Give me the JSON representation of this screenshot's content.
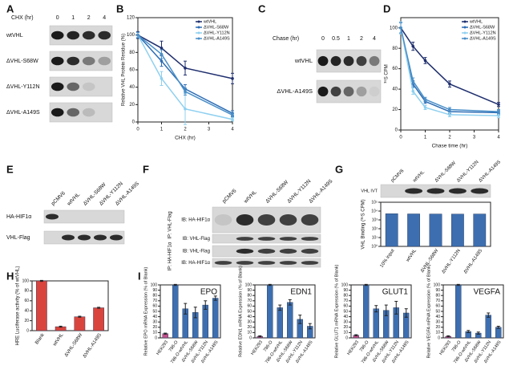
{
  "panel_labels": [
    "A",
    "B",
    "C",
    "D",
    "E",
    "F",
    "G",
    "H",
    "I"
  ],
  "blots": {
    "A": {
      "axis_label": "CHX (hr)",
      "lanes": [
        "0",
        "1",
        "2",
        "4"
      ],
      "rows": [
        "wtVHL",
        "ΔVHL-S68W",
        "ΔVHL-Y112N",
        "ΔVHL-A149S"
      ]
    },
    "C": {
      "axis_label": "Chase (hr)",
      "lanes": [
        "0",
        "0.5",
        "1",
        "2",
        "4"
      ],
      "rows": [
        "wtVHL",
        "ΔVHL-A149S"
      ]
    },
    "E": {
      "lanes": [
        "pCMV6",
        "wtVHL",
        "ΔVHL-S68W",
        "ΔVHL-Y112N",
        "ΔVHL-A149S"
      ],
      "rows": [
        "HA-HIF1α",
        "VHL-Flag"
      ]
    },
    "F": {
      "lanes": [
        "pCMV6",
        "wtVHL",
        "ΔVHL-S68W",
        "ΔVHL-Y112N",
        "ΔVHL-A149S"
      ],
      "groups": [
        {
          "name": "IP: VHL-Flag",
          "rows": [
            "IB: HA-HIF1α",
            "IB: VHL-Flag"
          ]
        },
        {
          "name": "IP: HA-HIF1α",
          "rows": [
            "IB: VHL-Flag",
            "IB: HA-HIF1α"
          ]
        }
      ]
    },
    "G": {
      "lanes": [
        "pCMV6",
        "wtVHL",
        "ΔVHL-S68W",
        "ΔVHL-Y112N",
        "ΔVHL-A149S"
      ],
      "row": "VHL IVT"
    }
  },
  "chart_data": [
    {
      "type": "line",
      "xlabel": "CHX (hr)",
      "ylabel": "Relative VHL Protein Residue (%)",
      "x": [
        0,
        1,
        2,
        4
      ],
      "xlim": [
        0,
        4
      ],
      "xticks": [
        0,
        1,
        2,
        3,
        4
      ],
      "ylim": [
        0,
        120
      ],
      "yticks": [
        0,
        20,
        40,
        60,
        80,
        100,
        120
      ],
      "legend": "upper right",
      "series": [
        {
          "name": "wtVHL",
          "color": "#1f2f6e",
          "values": [
            100,
            85,
            62,
            50
          ],
          "errors": [
            4,
            8,
            8,
            6
          ]
        },
        {
          "name": "ΔVHL-S68W",
          "color": "#2e6db4",
          "values": [
            100,
            70,
            38,
            10
          ],
          "errors": [
            3,
            6,
            5,
            3
          ]
        },
        {
          "name": "ΔVHL-Y112N",
          "color": "#8fd0f0",
          "values": [
            100,
            50,
            15,
            3
          ],
          "errors": [
            3,
            8,
            18,
            2
          ]
        },
        {
          "name": "ΔVHL-A149S",
          "color": "#4a8fc8",
          "values": [
            100,
            78,
            35,
            8
          ],
          "errors": [
            3,
            5,
            4,
            2
          ]
        }
      ]
    },
    {
      "type": "line",
      "xlabel": "Chase time (hr)",
      "ylabel": "³⁵S CPM",
      "x": [
        0,
        0.5,
        1,
        2,
        4
      ],
      "xlim": [
        0,
        4
      ],
      "xticks": [
        0,
        1,
        2,
        3,
        4
      ],
      "ylim": [
        0,
        110
      ],
      "yticks": [
        0,
        20,
        40,
        60,
        80,
        100
      ],
      "legend": "upper right",
      "series": [
        {
          "name": "wtVHL",
          "color": "#1f2f6e",
          "values": [
            100,
            82,
            68,
            45,
            25
          ],
          "errors": [
            5,
            4,
            3,
            3,
            2
          ]
        },
        {
          "name": "ΔVHL-S68W",
          "color": "#2e6db4",
          "values": [
            100,
            45,
            28,
            18,
            17
          ],
          "errors": [
            5,
            3,
            2,
            2,
            2
          ]
        },
        {
          "name": "ΔVHL-Y112N",
          "color": "#8fd0f0",
          "values": [
            100,
            38,
            22,
            15,
            14
          ],
          "errors": [
            6,
            3,
            2,
            2,
            2
          ]
        },
        {
          "name": "ΔVHL-A149S",
          "color": "#4a8fc8",
          "values": [
            100,
            48,
            30,
            20,
            18
          ],
          "errors": [
            5,
            3,
            2,
            2,
            2
          ]
        }
      ]
    },
    {
      "type": "bar",
      "ylabel": "VHL Binding (³⁵S CPM)",
      "log": true,
      "categories": [
        "10% input",
        "wtVHL",
        "ΔVHL-S68W",
        "ΔVHL-Y112N",
        "ΔVHL-A149S"
      ],
      "values": [
        5000,
        4800,
        4700,
        4600,
        4700
      ],
      "color": "#3d6fb0",
      "ylim": [
        1,
        100000
      ],
      "yticks": [
        {
          "value": 1,
          "label": "10⁰"
        },
        {
          "value": 10,
          "label": "10¹"
        },
        {
          "value": 100,
          "label": "10²"
        },
        {
          "value": 1000,
          "label": "10³"
        },
        {
          "value": 10000,
          "label": "10⁴"
        },
        {
          "value": 100000,
          "label": "10⁵"
        }
      ]
    },
    {
      "type": "bar",
      "ylabel": "HRE Luciferase activity (% of wtVHL)",
      "categories": [
        "Blank",
        "wtVHL",
        "ΔVHL-S68W",
        "ΔVHL-A149S"
      ],
      "values": [
        100,
        8,
        28,
        46
      ],
      "errors": [
        1,
        1,
        1,
        1
      ],
      "color": "#d9453d",
      "ylim": [
        0,
        100
      ],
      "yticks": [
        0,
        20,
        40,
        60,
        80,
        100
      ]
    },
    {
      "type": "bar",
      "title": "EPO",
      "ylabel": "Relative EPO mRNA Expression (% of Blank)",
      "categories": [
        "HEK293",
        "786-O",
        "786-O-wtVHL",
        "ΔVHL-S68W",
        "ΔVHL-Y112N",
        "ΔVHL-A149S"
      ],
      "values": [
        8,
        100,
        55,
        48,
        62,
        75
      ],
      "errors": [
        1,
        1,
        10,
        10,
        8,
        4
      ],
      "colors": [
        "#c0508a",
        "#3d6fb0",
        "#3d6fb0",
        "#3d6fb0",
        "#3d6fb0",
        "#3d6fb0"
      ],
      "ylim": [
        0,
        100
      ],
      "yticks": [
        0,
        10,
        20,
        30,
        40,
        50,
        60,
        70,
        80,
        90,
        100
      ]
    },
    {
      "type": "bar",
      "title": "EDN1",
      "ylabel": "Relative EDN1 mRNA Expression (% of Blank)",
      "categories": [
        "HEK293",
        "786-O",
        "786-O-wtVHL",
        "ΔVHL-S68W",
        "ΔVHL-Y112N",
        "ΔVHL-A149S"
      ],
      "values": [
        3,
        100,
        57,
        67,
        35,
        22
      ],
      "errors": [
        1,
        1,
        5,
        5,
        8,
        5
      ],
      "colors": [
        "#c0508a",
        "#3d6fb0",
        "#3d6fb0",
        "#3d6fb0",
        "#3d6fb0",
        "#3d6fb0"
      ],
      "ylim": [
        0,
        100
      ],
      "yticks": [
        0,
        10,
        20,
        30,
        40,
        50,
        60,
        70,
        80,
        90,
        100
      ]
    },
    {
      "type": "bar",
      "title": "GLUT1",
      "ylabel": "Relative GLUT1 mRNA Expression (% of Blank)",
      "categories": [
        "HEK293",
        "786-O",
        "786-O-wtVHL",
        "ΔVHL-S68W",
        "ΔVHL-Y112N",
        "ΔVHL-A149S"
      ],
      "values": [
        5,
        100,
        55,
        52,
        57,
        47
      ],
      "errors": [
        1,
        1,
        6,
        10,
        12,
        8
      ],
      "colors": [
        "#c0508a",
        "#3d6fb0",
        "#3d6fb0",
        "#3d6fb0",
        "#3d6fb0",
        "#3d6fb0"
      ],
      "ylim": [
        0,
        100
      ],
      "yticks": [
        0,
        10,
        20,
        30,
        40,
        50,
        60,
        70,
        80,
        90,
        100
      ]
    },
    {
      "type": "bar",
      "title": "VEGFA",
      "ylabel": "Relative VEGFA mRNA Expression (% of Blank)",
      "categories": [
        "HEK293",
        "786-O",
        "786-O-wtVHL",
        "ΔVHL-S68W",
        "ΔVHL-Y112N",
        "ΔVHL-A149S"
      ],
      "values": [
        3,
        100,
        12,
        9,
        43,
        20
      ],
      "errors": [
        1,
        1,
        2,
        2,
        4,
        2
      ],
      "colors": [
        "#c0508a",
        "#3d6fb0",
        "#3d6fb0",
        "#3d6fb0",
        "#3d6fb0",
        "#3d6fb0"
      ],
      "ylim": [
        0,
        100
      ],
      "yticks": [
        0,
        10,
        20,
        30,
        40,
        50,
        60,
        70,
        80,
        90,
        100
      ]
    }
  ]
}
